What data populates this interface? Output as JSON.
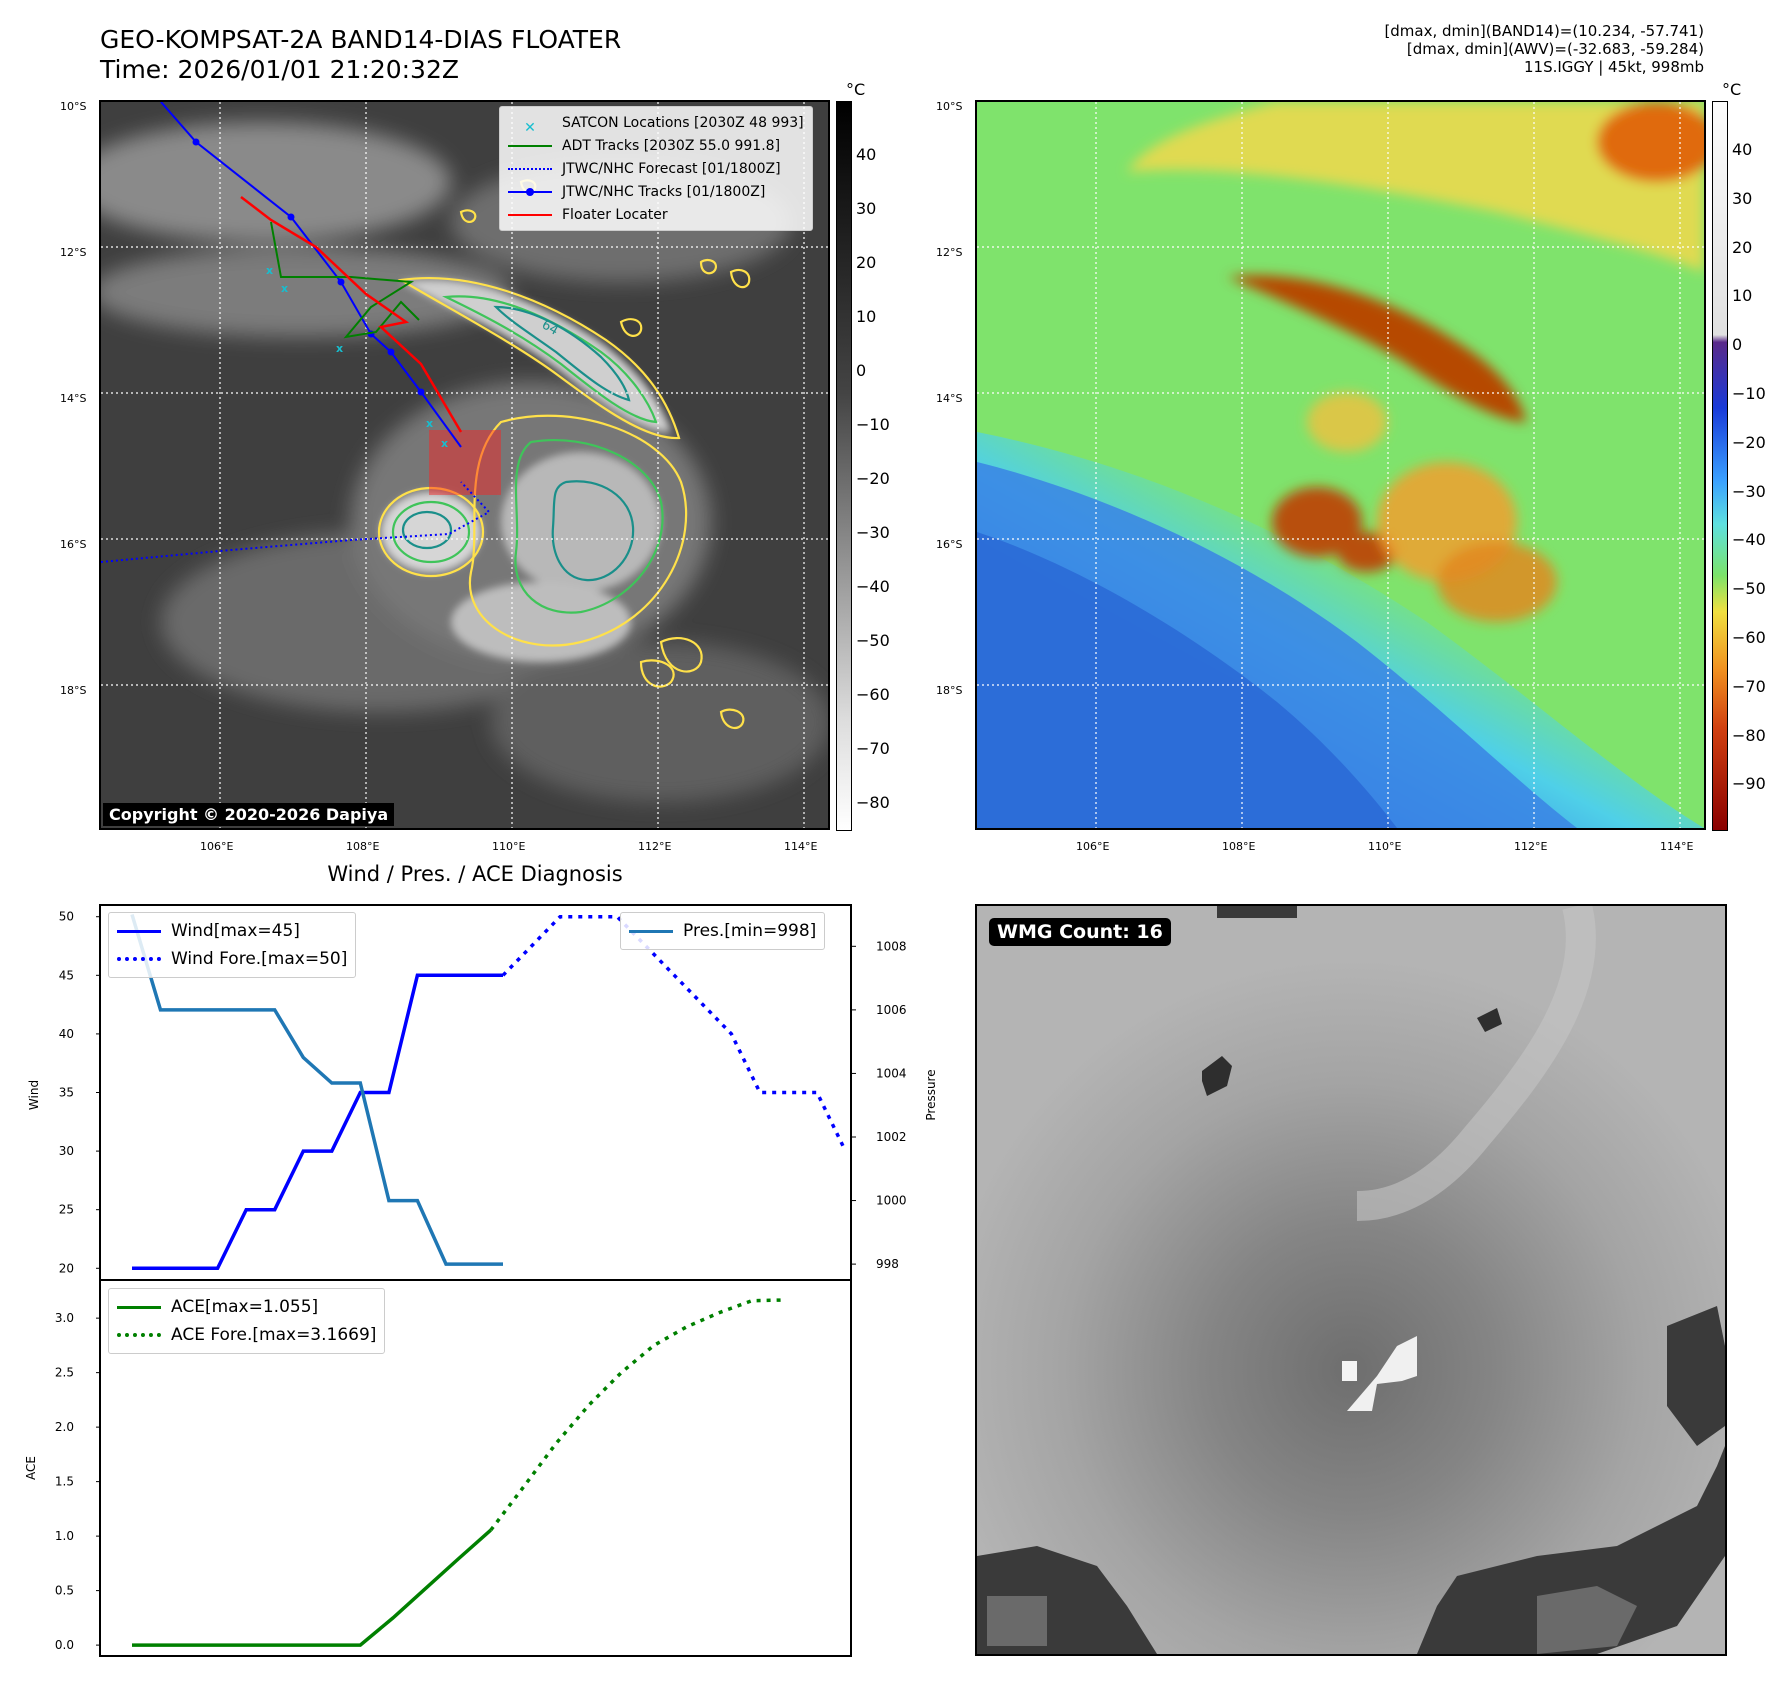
{
  "header": {
    "title_line1": "GEO-KOMPSAT-2A BAND14-DIAS FLOATER",
    "title_line2": "Time: 2026/01/01 21:20:32Z",
    "info_line1": "[dmax, dmin](BAND14)=(10.234, -57.741)",
    "info_line2": "[dmax, dmin](AWV)=(-32.683, -59.284)",
    "info_line3": "11S.IGGY | 45kt, 998mb"
  },
  "maps": {
    "lat_labels": [
      "10°S",
      "12°S",
      "14°S",
      "16°S",
      "18°S"
    ],
    "lon_labels": [
      "106°E",
      "108°E",
      "110°E",
      "112°E",
      "114°E"
    ],
    "copyright": "Copyright © 2020-2026 Dapiya",
    "contour_label": "64",
    "colorbar_unit": "°C",
    "ir_colorbar_ticks": [
      "40",
      "30",
      "20",
      "10",
      "0",
      "−10",
      "−20",
      "−30",
      "−40",
      "−50",
      "−60",
      "−70",
      "−80"
    ],
    "color_colorbar_ticks": [
      "40",
      "30",
      "20",
      "10",
      "0",
      "−10",
      "−20",
      "−30",
      "−40",
      "−50",
      "−60",
      "−70",
      "−80",
      "−90"
    ],
    "legend": [
      {
        "label": "SATCON Locations [2030Z 48 993]",
        "color": "#17becf",
        "style": "marker-x"
      },
      {
        "label": "ADT Tracks [2030Z 55.0 991.8]",
        "color": "#008000",
        "style": "solid"
      },
      {
        "label": "JTWC/NHC Forecast [01/1800Z]",
        "color": "#0000ff",
        "style": "dotted"
      },
      {
        "label": "JTWC/NHC Tracks [01/1800Z]",
        "color": "#0000ff",
        "style": "solid-dot"
      },
      {
        "label": "Floater Locater",
        "color": "#ff0000",
        "style": "solid"
      }
    ]
  },
  "wmg": {
    "badge": "WMG Count: 16"
  },
  "chart_data": [
    {
      "type": "line",
      "title": "Wind / Pres. / ACE Diagnosis",
      "ylabel": "Wind",
      "ylabel_right": "Pressure",
      "ylim": [
        19,
        51
      ],
      "ylim_right": [
        997.5,
        1009.3
      ],
      "yticks": [
        20,
        25,
        30,
        35,
        40,
        45,
        50
      ],
      "yticks_right": [
        998,
        1000,
        1002,
        1004,
        1006,
        1008
      ],
      "series": [
        {
          "name": "Wind[max=45]",
          "color": "#0000ff",
          "style": "solid",
          "axis": "left",
          "values": [
            20,
            20,
            20,
            20,
            25,
            25,
            30,
            30,
            35,
            35,
            45,
            45,
            45,
            45
          ]
        },
        {
          "name": "Wind Fore.[max=50]",
          "color": "#0000ff",
          "style": "dotted",
          "axis": "left",
          "x_offset": 13,
          "values": [
            45,
            47.5,
            50,
            50,
            50,
            47.5,
            45,
            42.5,
            40,
            35,
            35,
            35,
            30
          ]
        },
        {
          "name": "Pres.[min=998]",
          "color": "#1f77b4",
          "style": "solid",
          "axis": "right",
          "values": [
            1009,
            1006,
            1006,
            1006,
            1006,
            1006,
            1004.5,
            1003.7,
            1003.7,
            1000,
            1000,
            998,
            998,
            998
          ]
        }
      ],
      "legend_left": [
        "Wind[max=45]",
        "Wind Fore.[max=50]"
      ],
      "legend_right": [
        "Pres.[min=998]"
      ]
    },
    {
      "type": "line",
      "ylabel": "ACE",
      "ylim": [
        -0.1,
        3.35
      ],
      "yticks": [
        "0.0",
        "0.5",
        "1.0",
        "1.5",
        "2.0",
        "2.5",
        "3.0"
      ],
      "series": [
        {
          "name": "ACE[max=1.055]",
          "color": "#008000",
          "style": "solid",
          "values": [
            0,
            0,
            0,
            0,
            0,
            0,
            0,
            0,
            0.25,
            0.52,
            0.79,
            1.055
          ]
        },
        {
          "name": "ACE Fore.[max=3.1669]",
          "color": "#008000",
          "style": "dotted",
          "x_offset": 11,
          "values": [
            1.055,
            1.45,
            1.85,
            2.2,
            2.5,
            2.75,
            2.92,
            3.05,
            3.16,
            3.1669
          ]
        }
      ]
    }
  ]
}
